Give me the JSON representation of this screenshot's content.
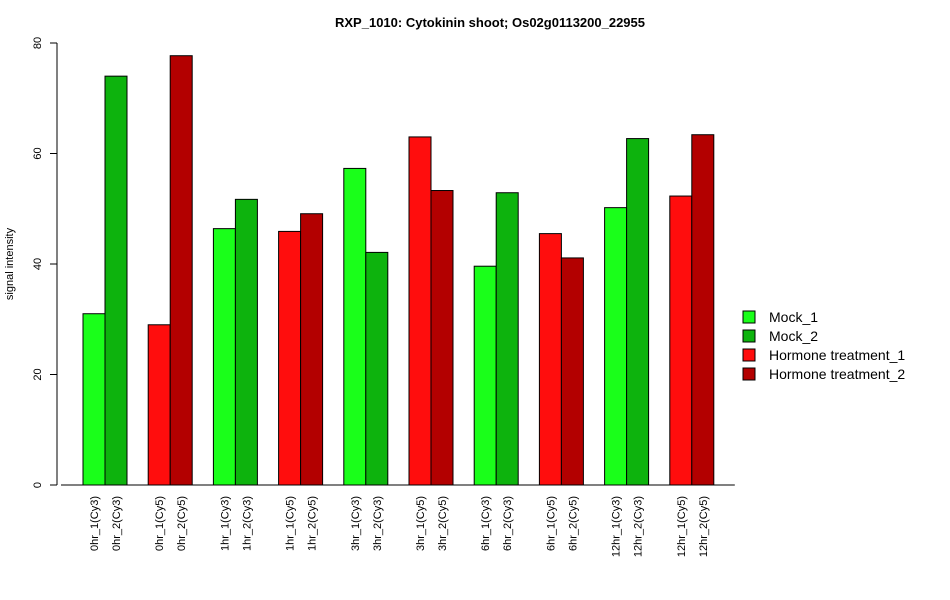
{
  "chart_data": {
    "type": "bar",
    "title": "RXP_1010: Cytokinin shoot; Os02g0113200_22955",
    "ylabel": "signal intensity",
    "xlabel": "",
    "ylim": [
      0,
      80
    ],
    "yticks": [
      0,
      20,
      40,
      60,
      80
    ],
    "grid": false,
    "legend_position": "right",
    "legend": [
      {
        "name": "Mock_1",
        "color": "#1aff1a"
      },
      {
        "name": "Mock_2",
        "color": "#0db30d"
      },
      {
        "name": "Hormone treatment_1",
        "color": "#ff0d0d"
      },
      {
        "name": "Hormone treatment_2",
        "color": "#b30000"
      }
    ],
    "groups": [
      {
        "bars": [
          {
            "label": "0hr_1(Cy3)",
            "value": 31.0,
            "color": "#1aff1a"
          },
          {
            "label": "0hr_2(Cy3)",
            "value": 74.0,
            "color": "#0db30d"
          }
        ]
      },
      {
        "bars": [
          {
            "label": "0hr_1(Cy5)",
            "value": 29.0,
            "color": "#ff0d0d"
          },
          {
            "label": "0hr_2(Cy5)",
            "value": 77.7,
            "color": "#b30000"
          }
        ]
      },
      {
        "bars": [
          {
            "label": "1hr_1(Cy3)",
            "value": 46.4,
            "color": "#1aff1a"
          },
          {
            "label": "1hr_2(Cy3)",
            "value": 51.7,
            "color": "#0db30d"
          }
        ]
      },
      {
        "bars": [
          {
            "label": "1hr_1(Cy5)",
            "value": 45.9,
            "color": "#ff0d0d"
          },
          {
            "label": "1hr_2(Cy5)",
            "value": 49.1,
            "color": "#b30000"
          }
        ]
      },
      {
        "bars": [
          {
            "label": "3hr_1(Cy3)",
            "value": 57.3,
            "color": "#1aff1a"
          },
          {
            "label": "3hr_2(Cy3)",
            "value": 42.1,
            "color": "#0db30d"
          }
        ]
      },
      {
        "bars": [
          {
            "label": "3hr_1(Cy5)",
            "value": 63.0,
            "color": "#ff0d0d"
          },
          {
            "label": "3hr_2(Cy5)",
            "value": 53.3,
            "color": "#b30000"
          }
        ]
      },
      {
        "bars": [
          {
            "label": "6hr_1(Cy3)",
            "value": 39.6,
            "color": "#1aff1a"
          },
          {
            "label": "6hr_2(Cy3)",
            "value": 52.9,
            "color": "#0db30d"
          }
        ]
      },
      {
        "bars": [
          {
            "label": "6hr_1(Cy5)",
            "value": 45.5,
            "color": "#ff0d0d"
          },
          {
            "label": "6hr_2(Cy5)",
            "value": 41.1,
            "color": "#b30000"
          }
        ]
      },
      {
        "bars": [
          {
            "label": "12hr_1(Cy3)",
            "value": 50.2,
            "color": "#1aff1a"
          },
          {
            "label": "12hr_2(Cy3)",
            "value": 62.7,
            "color": "#0db30d"
          }
        ]
      },
      {
        "bars": [
          {
            "label": "12hr_1(Cy5)",
            "value": 52.3,
            "color": "#ff0d0d"
          },
          {
            "label": "12hr_2(Cy5)",
            "value": 63.4,
            "color": "#b30000"
          }
        ]
      }
    ]
  }
}
